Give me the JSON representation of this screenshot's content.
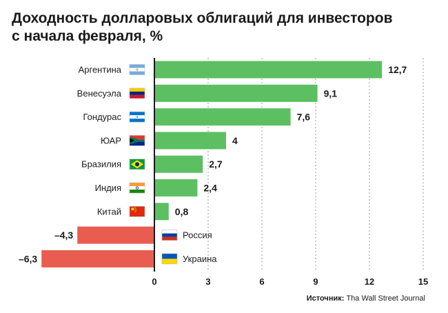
{
  "title": {
    "line1": "Доходность долларовых облигаций для инвесторов",
    "line2": "с начала февраля, %"
  },
  "source": {
    "label": "Источник:",
    "text": "Tha Wall Street Journal"
  },
  "colors": {
    "positive": "#5cbf62",
    "negative": "#e85d50",
    "axis": "#1a1a1a",
    "grid": "#9a9a9a"
  },
  "chart_data": {
    "type": "bar",
    "orientation": "horizontal",
    "categories": [
      "Аргентина",
      "Венесуэла",
      "Гондурас",
      "ЮАР",
      "Бразилия",
      "Индия",
      "Китай",
      "Россия",
      "Украина"
    ],
    "values": [
      12.7,
      9.1,
      7.6,
      4,
      2.7,
      2.4,
      0.8,
      -4.3,
      -6.3
    ],
    "value_labels": [
      "12,7",
      "9,1",
      "7,6",
      "4",
      "2,7",
      "2,4",
      "0,8",
      "–4,3",
      "–6,3"
    ],
    "flags": [
      "argentina-flag-icon",
      "venezuela-flag-icon",
      "honduras-flag-icon",
      "south-africa-flag-icon",
      "brazil-flag-icon",
      "india-flag-icon",
      "china-flag-icon",
      "russia-flag-icon",
      "ukraine-flag-icon"
    ],
    "xlim": [
      -6.3,
      15
    ],
    "xticks": [
      0,
      3,
      6,
      9,
      12,
      15
    ],
    "xtick_labels": [
      "0",
      "3",
      "6",
      "9",
      "12",
      "15"
    ],
    "grid": "vertical dashed at ticks",
    "xlabel": "",
    "ylabel": ""
  }
}
